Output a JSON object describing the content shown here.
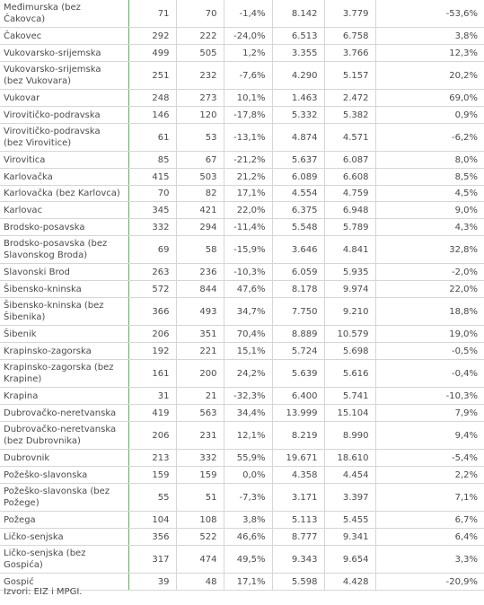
{
  "table": {
    "rows": [
      [
        "Međimurska (bez Čakovca)",
        "71",
        "70",
        "-1,4%",
        "8.142",
        "3.779",
        "-53,6%"
      ],
      [
        "Čakovec",
        "292",
        "222",
        "-24,0%",
        "6.513",
        "6.758",
        "3,8%"
      ],
      [
        "Vukovarsko-srijemska",
        "499",
        "505",
        "1,2%",
        "3.355",
        "3.766",
        "12,3%"
      ],
      [
        "Vukovarsko-srijemska (bez Vukovara)",
        "251",
        "232",
        "-7,6%",
        "4.290",
        "5.157",
        "20,2%"
      ],
      [
        "Vukovar",
        "248",
        "273",
        "10,1%",
        "1.463",
        "2.472",
        "69,0%"
      ],
      [
        "Virovitičko-podravska",
        "146",
        "120",
        "-17,8%",
        "5.332",
        "5.382",
        "0,9%"
      ],
      [
        "Virovitičko-podravska (bez Virovitice)",
        "61",
        "53",
        "-13,1%",
        "4.874",
        "4.571",
        "-6,2%"
      ],
      [
        "Virovitica",
        "85",
        "67",
        "-21,2%",
        "5.637",
        "6.087",
        "8,0%"
      ],
      [
        "Karlovačka",
        "415",
        "503",
        "21,2%",
        "6.089",
        "6.608",
        "8,5%"
      ],
      [
        "Karlovačka (bez Karlovca)",
        "70",
        "82",
        "17,1%",
        "4.554",
        "4.759",
        "4,5%"
      ],
      [
        "Karlovac",
        "345",
        "421",
        "22,0%",
        "6.375",
        "6.948",
        "9,0%"
      ],
      [
        "Brodsko-posavska",
        "332",
        "294",
        "-11,4%",
        "5.548",
        "5.789",
        "4,3%"
      ],
      [
        "Brodsko-posavska (bez Slavonskog Broda)",
        "69",
        "58",
        "-15,9%",
        "3.646",
        "4.841",
        "32,8%"
      ],
      [
        "Slavonski Brod",
        "263",
        "236",
        "-10,3%",
        "6.059",
        "5.935",
        "-2,0%"
      ],
      [
        "Šibensko-kninska",
        "572",
        "844",
        "47,6%",
        "8.178",
        "9.974",
        "22,0%"
      ],
      [
        "Šibensko-kninska (bez Šibenika)",
        "366",
        "493",
        "34,7%",
        "7.750",
        "9.210",
        "18,8%"
      ],
      [
        "Šibenik",
        "206",
        "351",
        "70,4%",
        "8.889",
        "10.579",
        "19,0%"
      ],
      [
        "Krapinsko-zagorska",
        "192",
        "221",
        "15,1%",
        "5.724",
        "5.698",
        "-0,5%"
      ],
      [
        "Krapinsko-zagorska (bez Krapine)",
        "161",
        "200",
        "24,2%",
        "5.639",
        "5.616",
        "-0,4%"
      ],
      [
        "Krapina",
        "31",
        "21",
        "-32,3%",
        "6.400",
        "5.741",
        "-10,3%"
      ],
      [
        "Dubrovačko-neretvanska",
        "419",
        "563",
        "34,4%",
        "13.999",
        "15.104",
        "7,9%"
      ],
      [
        "Dubrovačko-neretvanska (bez Dubrovnika)",
        "206",
        "231",
        "12,1%",
        "8.219",
        "8.990",
        "9,4%"
      ],
      [
        "Dubrovnik",
        "213",
        "332",
        "55,9%",
        "19.671",
        "18.610",
        "-5,4%"
      ],
      [
        "Požeško-slavonska",
        "159",
        "159",
        "0,0%",
        "4.358",
        "4.454",
        "2,2%"
      ],
      [
        "Požeško-slavonska (bez Požege)",
        "55",
        "51",
        "-7,3%",
        "3.171",
        "3.397",
        "7,1%"
      ],
      [
        "Požega",
        "104",
        "108",
        "3,8%",
        "5.113",
        "5.455",
        "6,7%"
      ],
      [
        "Ličko-senjska",
        "356",
        "522",
        "46,6%",
        "8.777",
        "9.341",
        "6,4%"
      ],
      [
        "Ličko-senjska (bez Gospića)",
        "317",
        "474",
        "49,5%",
        "9.343",
        "9.654",
        "3,3%"
      ],
      [
        "Gospić",
        "39",
        "48",
        "17,1%",
        "5.598",
        "4.428",
        "-20,9%"
      ]
    ]
  },
  "source": "Izvori: EIZ i MPGI."
}
